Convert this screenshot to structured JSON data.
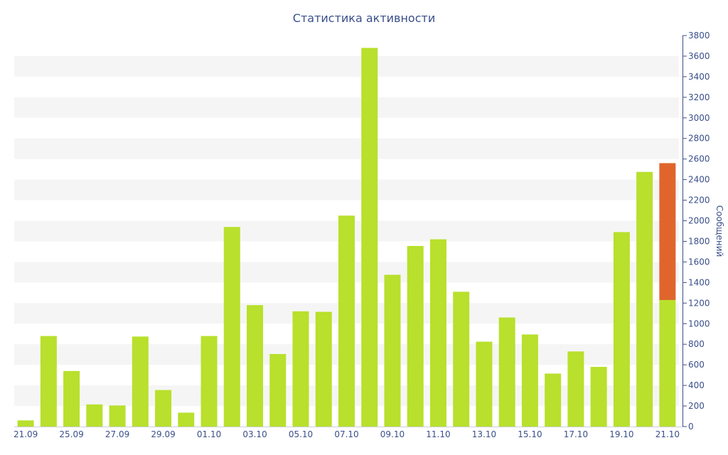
{
  "chart_data": {
    "type": "bar",
    "title": "Статистика активности",
    "ylabel": "Сообщений",
    "xlabel": "",
    "ylim": [
      0,
      3800
    ],
    "yticks": [
      0,
      200,
      400,
      600,
      800,
      1000,
      1200,
      1400,
      1600,
      1800,
      2000,
      2200,
      2400,
      2600,
      2800,
      3000,
      3200,
      3400,
      3600,
      3800
    ],
    "x_tick_labels": [
      "21.09",
      "25.09",
      "27.09",
      "29.09",
      "01.10",
      "03.10",
      "05.10",
      "07.10",
      "09.10",
      "11.10",
      "13.10",
      "15.10",
      "17.10",
      "19.10",
      "21.10"
    ],
    "grid": "horizontal alternating bands",
    "stacked": true,
    "series": [
      {
        "color": "#b8e02c",
        "values": [
          60,
          880,
          540,
          215,
          205,
          875,
          355,
          135,
          880,
          1940,
          1180,
          705,
          1120,
          1115,
          2050,
          3680,
          1475,
          1755,
          1820,
          1310,
          825,
          1060,
          895,
          515,
          730,
          580,
          1890,
          2475,
          1230
        ]
      },
      {
        "color": "#e0652d",
        "values": [
          0,
          0,
          0,
          0,
          0,
          0,
          0,
          0,
          0,
          0,
          0,
          0,
          0,
          0,
          0,
          0,
          0,
          0,
          0,
          0,
          0,
          0,
          0,
          0,
          0,
          0,
          0,
          0,
          1330
        ]
      }
    ],
    "colors": {
      "text": "#3a4f8a",
      "band": "#f5f5f5",
      "axis": "#3a4f8a"
    }
  }
}
